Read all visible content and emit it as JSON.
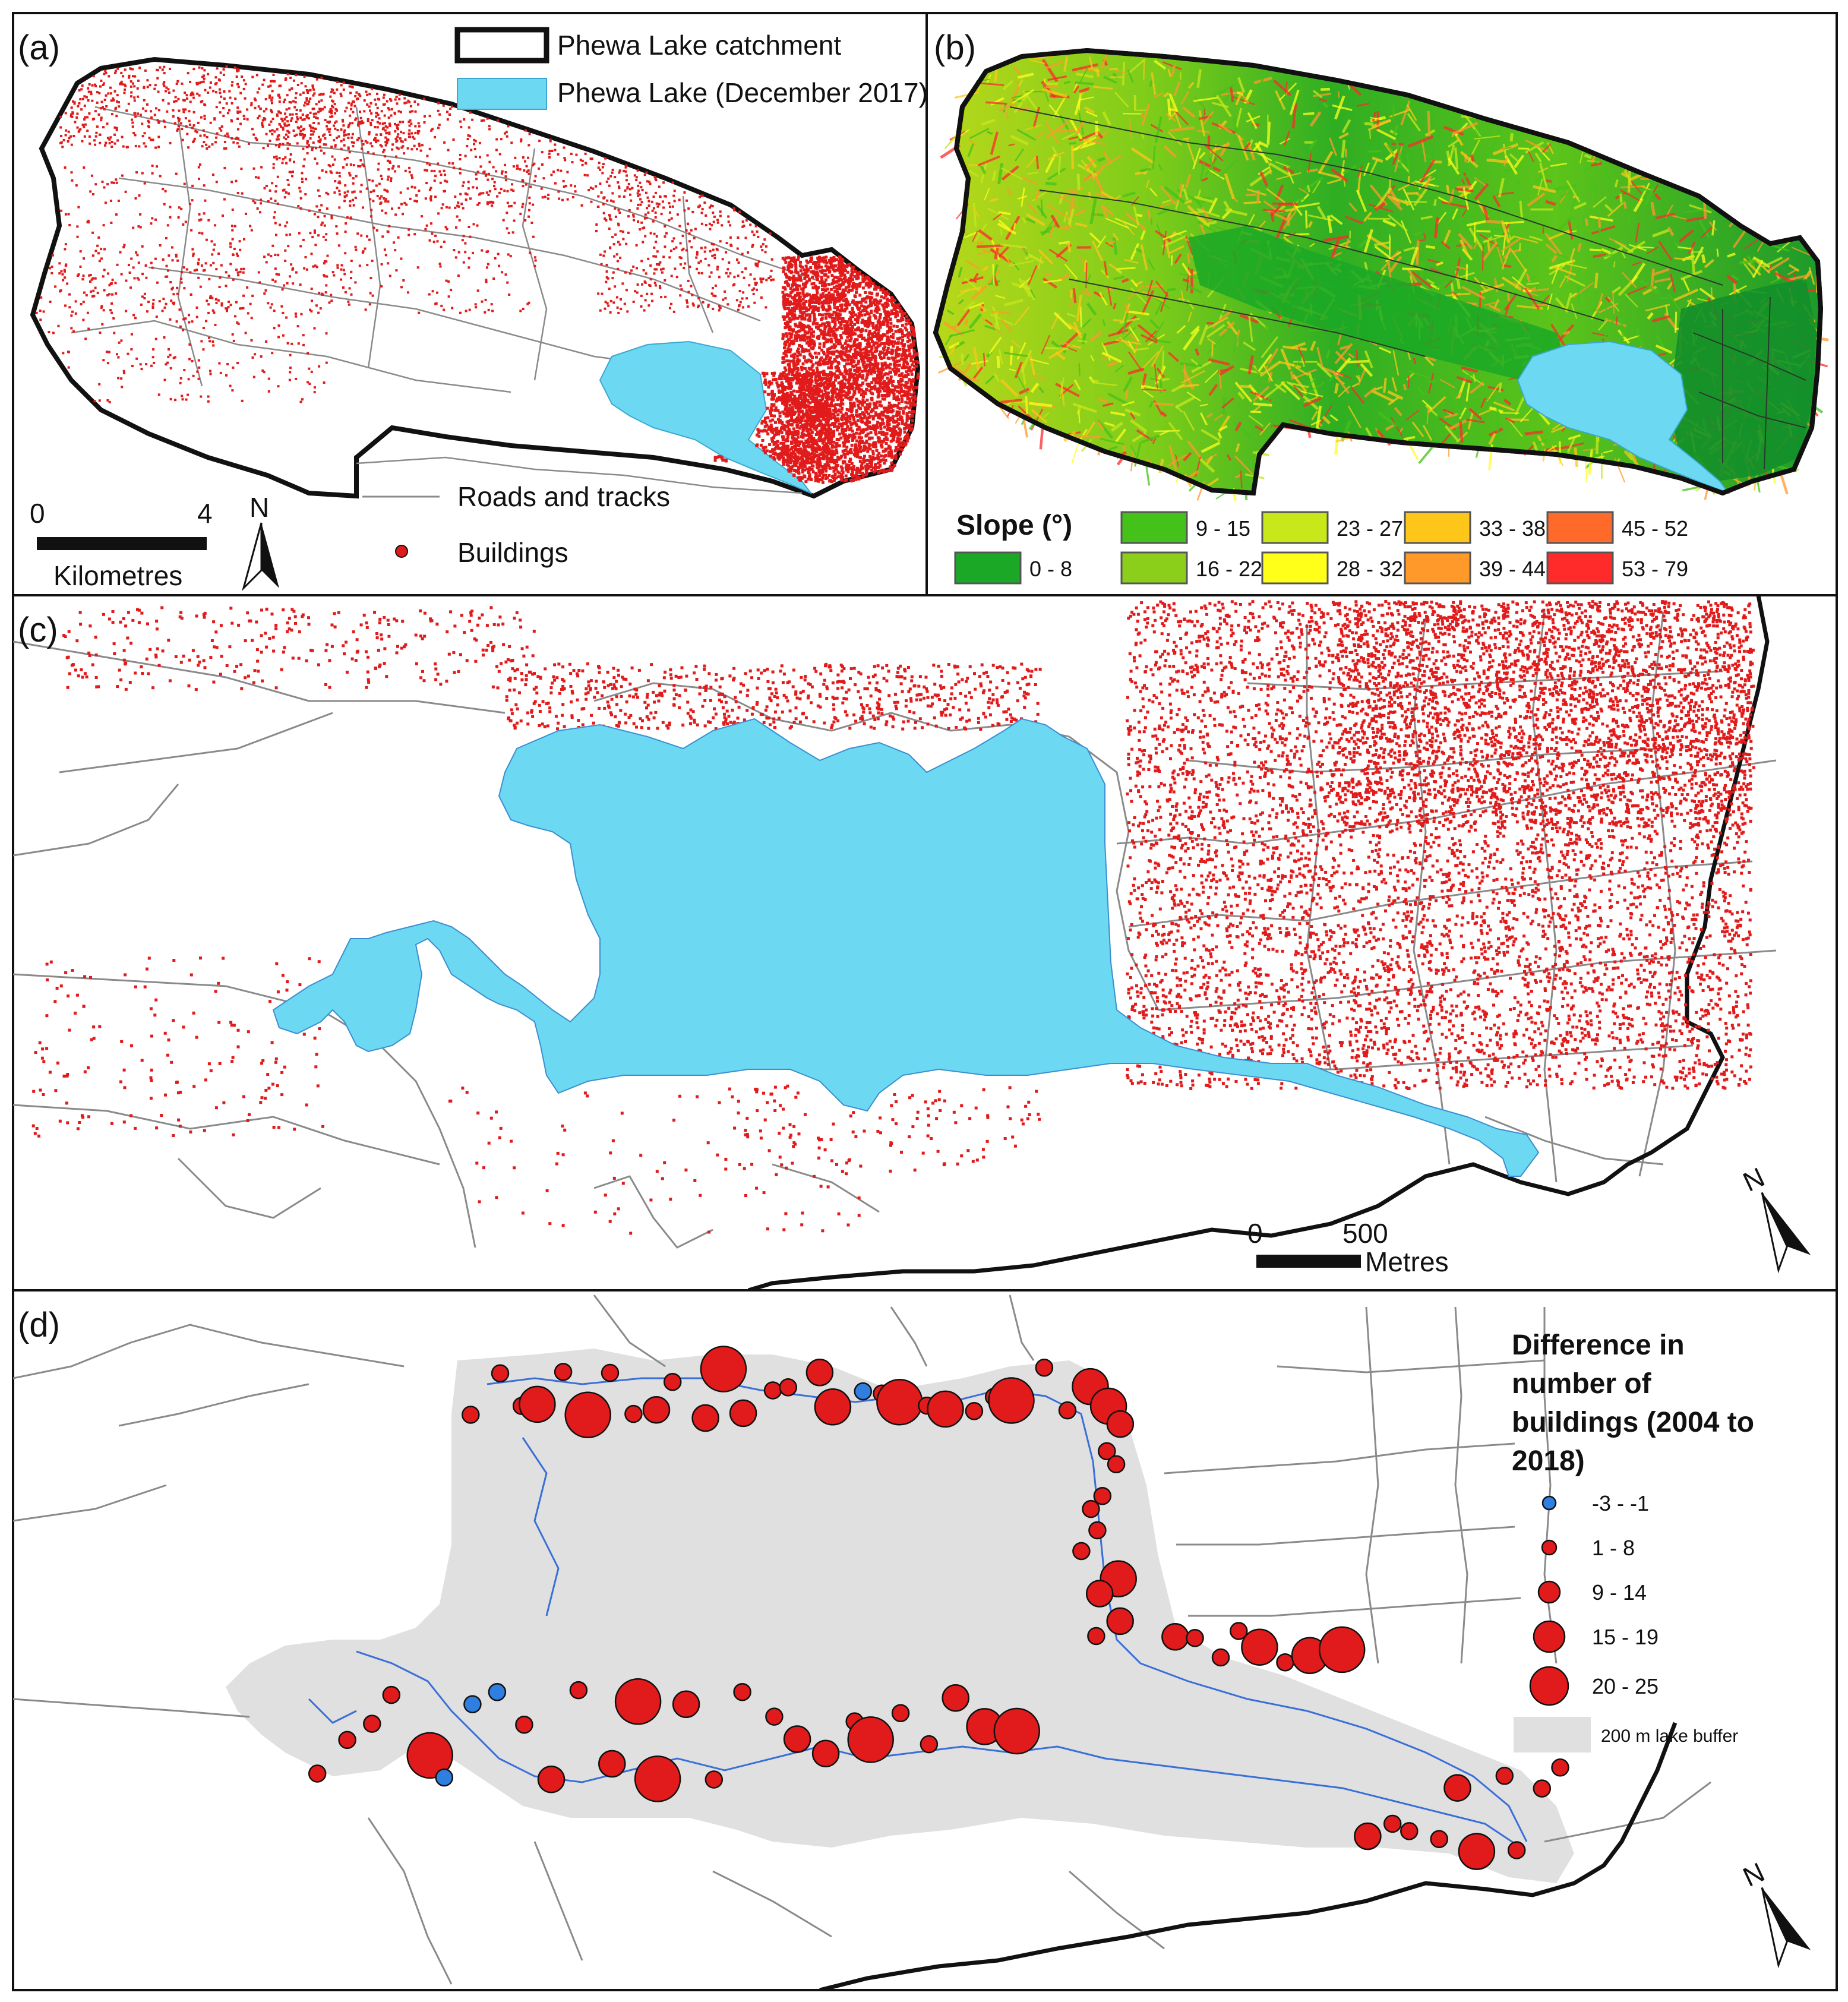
{
  "colors": {
    "lake": "#6dd8f2",
    "building": "#e11b1b",
    "road": "#8a8a8a",
    "boundary": "#111111",
    "buffer": "#e0e0e0",
    "decrease": "#2f7fe0",
    "stream": "#3a6fd8"
  },
  "panel_a": {
    "label": "(a)",
    "legend_catchment": "Phewa Lake catchment",
    "legend_lake": "Phewa Lake (December 2017)",
    "legend_roads": "Roads and tracks",
    "legend_buildings": "Buildings",
    "scale_start": "0",
    "scale_end": "4",
    "scale_unit": "Kilometres",
    "north": "N"
  },
  "panel_b": {
    "label": "(b)",
    "legend_title": "Slope (°)",
    "classes": [
      {
        "label": "0 - 8",
        "color": "#1aa826"
      },
      {
        "label": "9 - 15",
        "color": "#44c21a"
      },
      {
        "label": "16 - 22",
        "color": "#8ccf1a"
      },
      {
        "label": "23 - 27",
        "color": "#c8e81a"
      },
      {
        "label": "28 - 32",
        "color": "#ffff1a"
      },
      {
        "label": "33 - 38",
        "color": "#ffc61a"
      },
      {
        "label": "39 - 44",
        "color": "#ff9a2a"
      },
      {
        "label": "45 - 52",
        "color": "#ff6a2a"
      },
      {
        "label": "53 - 79",
        "color": "#ff2a2a"
      }
    ]
  },
  "panel_c": {
    "label": "(c)",
    "scale_start": "0",
    "scale_end": "500",
    "scale_unit": "Metres",
    "north": "N"
  },
  "panel_d": {
    "label": "(d)",
    "legend_title_lines": [
      "Difference in",
      "number of",
      "buildings (2004 to",
      "2018)"
    ],
    "classes": [
      {
        "label": "-3 - -1",
        "color": "#2f7fe0"
      },
      {
        "label": "1 - 8",
        "color": "#e11b1b"
      },
      {
        "label": "9 - 14",
        "color": "#e11b1b"
      },
      {
        "label": "15 - 19",
        "color": "#e11b1b"
      },
      {
        "label": "20 - 25",
        "color": "#e11b1b"
      }
    ],
    "buffer_label": "200 m lake buffer",
    "north": "N"
  }
}
